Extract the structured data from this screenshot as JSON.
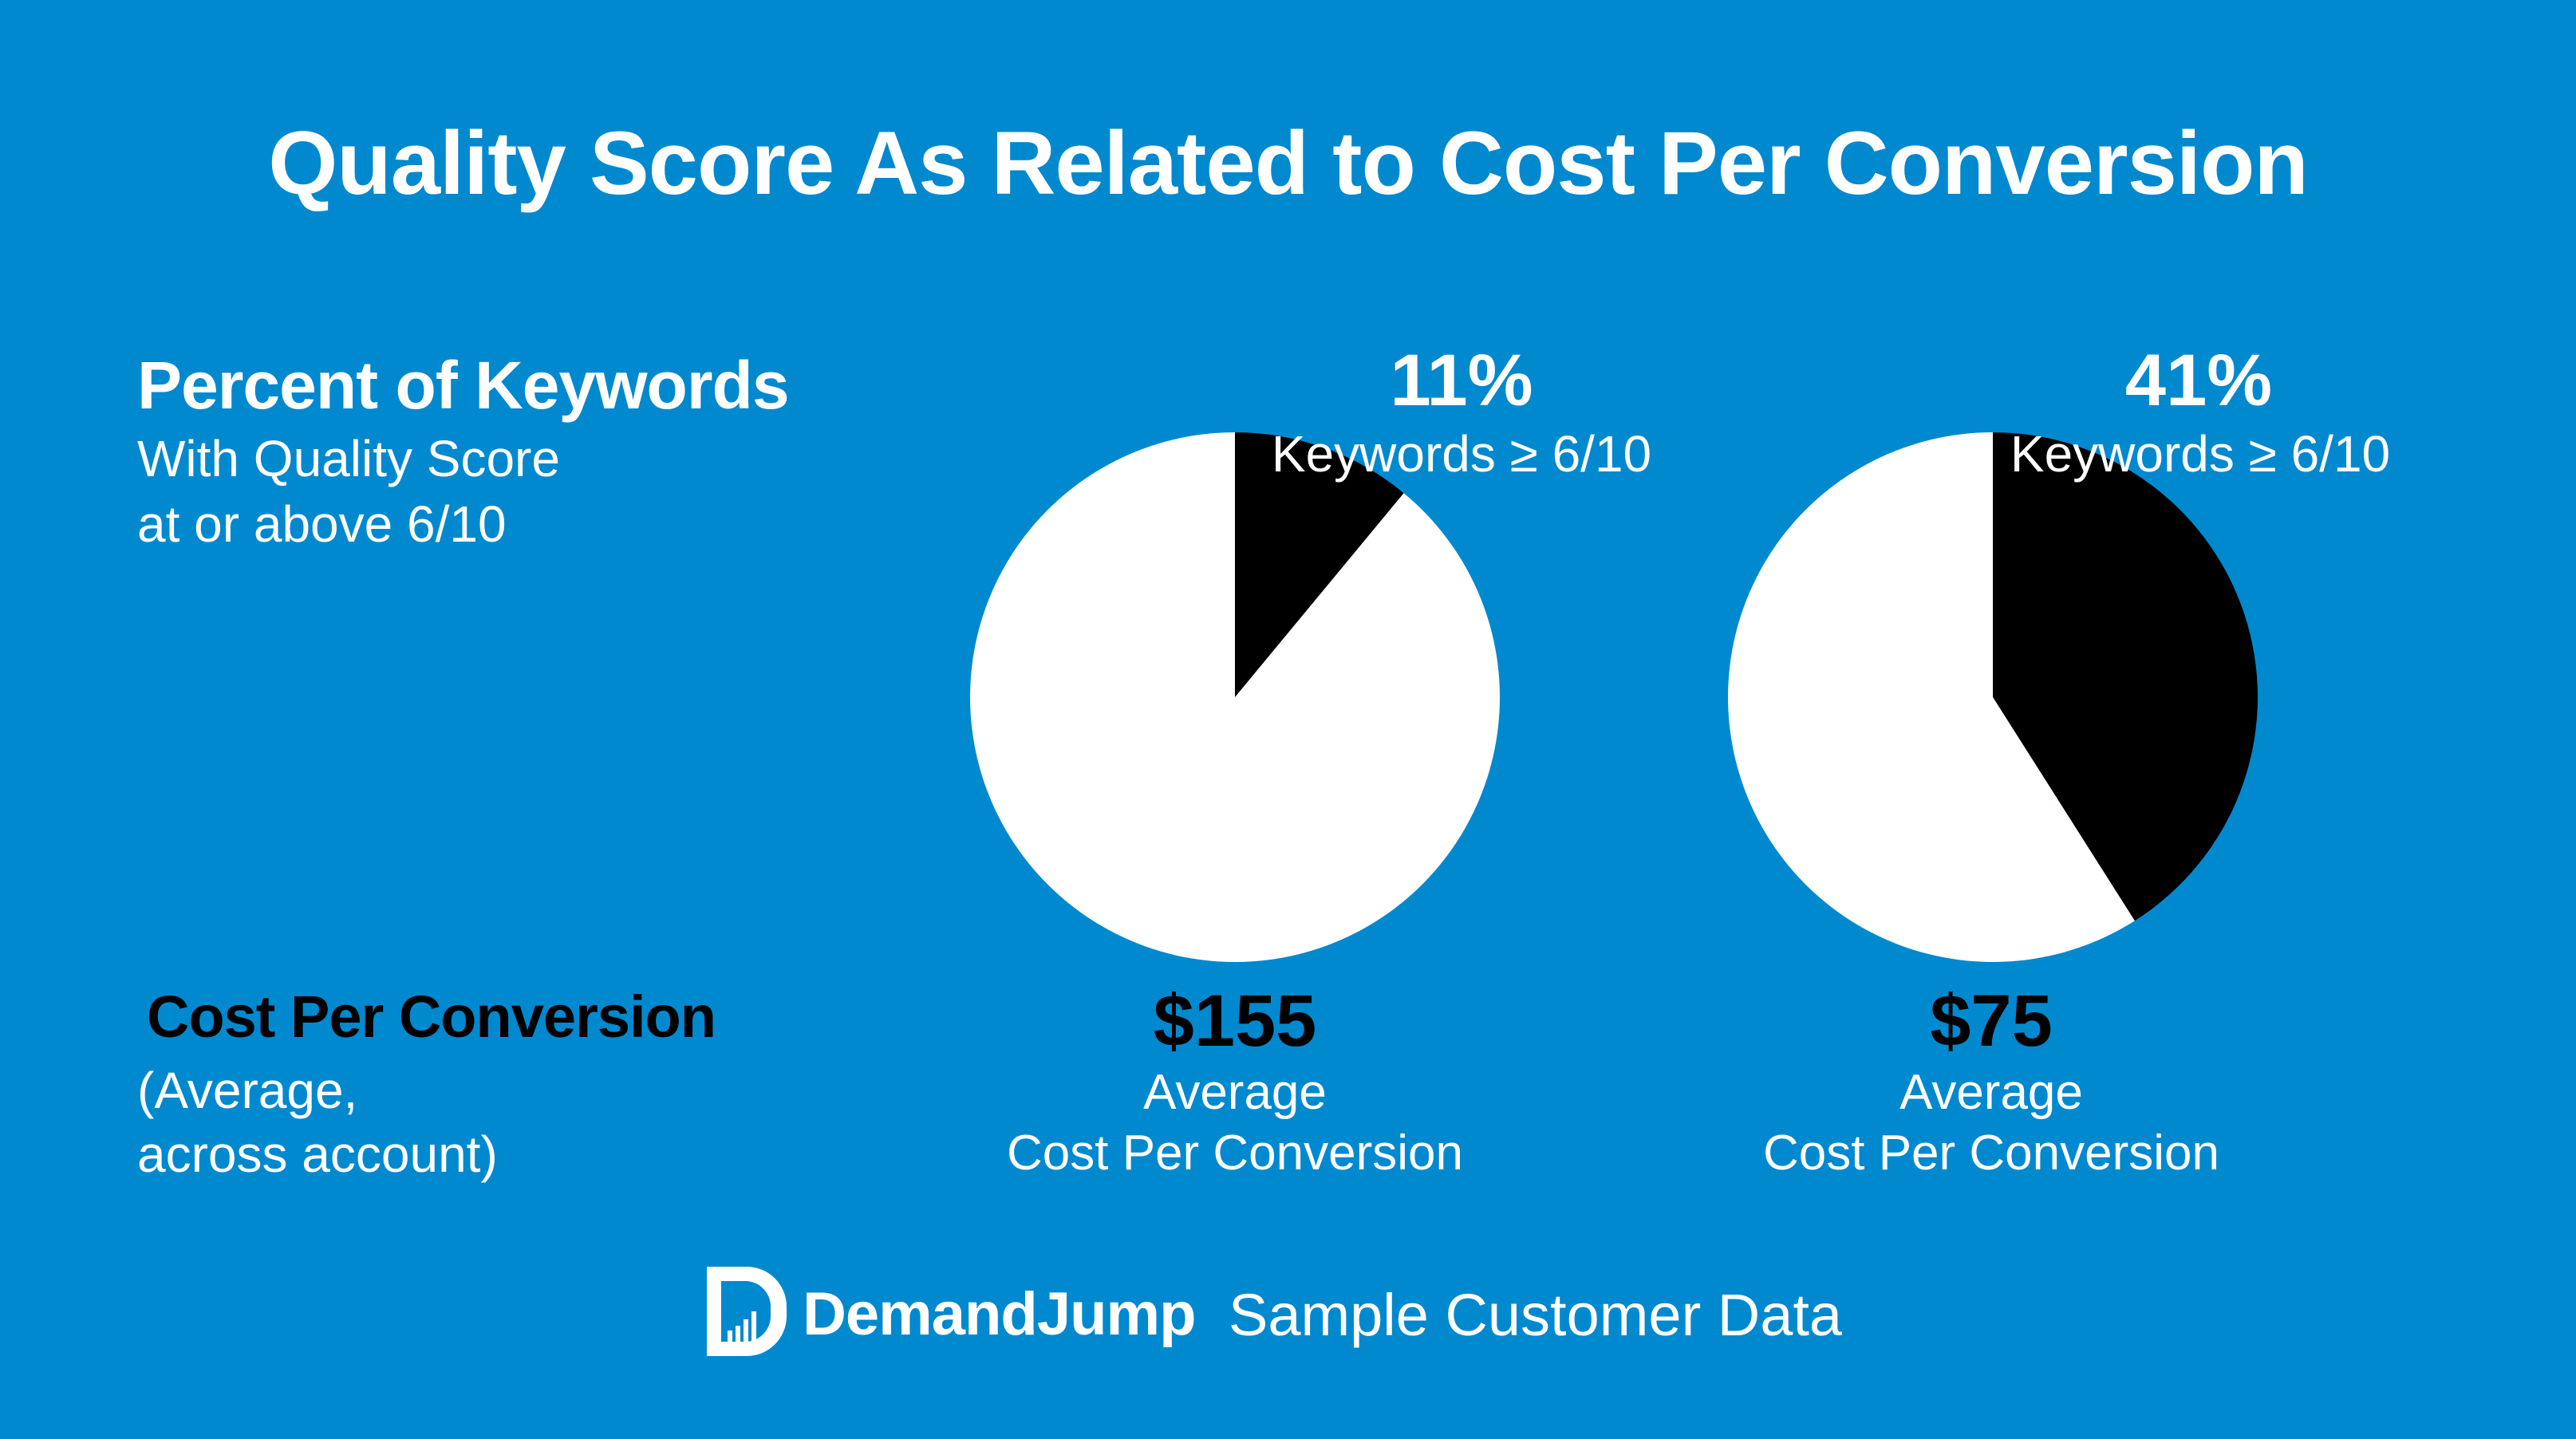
{
  "title": "Quality Score As Related to Cost Per Conversion",
  "left_panel": {
    "heading": "Percent of Keywords",
    "sub_line1": "With Quality Score",
    "sub_line2": "at or above 6/10",
    "cost_heading": "Cost Per Conversion",
    "cost_sub_line1": "(Average,",
    "cost_sub_line2": "across account)"
  },
  "colors": {
    "background": "#0089cf",
    "highlight": "#000000",
    "remainder": "#ffffff"
  },
  "chart_data": [
    {
      "type": "pie",
      "slices": [
        {
          "label": "Keywords ≥ 6/10",
          "value": 11,
          "color": "#000000"
        },
        {
          "label": "",
          "value": 89,
          "color": "#ffffff"
        }
      ],
      "percent_label": "11%",
      "caption": "Keywords ≥ 6/10",
      "cost_value": "$155",
      "cost_caption_line1": "Average",
      "cost_caption_line2": "Cost Per Conversion"
    },
    {
      "type": "pie",
      "slices": [
        {
          "label": "Keywords ≥ 6/10",
          "value": 41,
          "color": "#000000"
        },
        {
          "label": "",
          "value": 59,
          "color": "#ffffff"
        }
      ],
      "percent_label": "41%",
      "caption": "Keywords ≥ 6/10",
      "cost_value": "$75",
      "cost_caption_line1": "Average",
      "cost_caption_line2": "Cost Per Conversion"
    }
  ],
  "footer": {
    "logo_icon": "demandjump-logo-icon",
    "brand": "DemandJump",
    "tagline": "Sample Customer Data"
  }
}
